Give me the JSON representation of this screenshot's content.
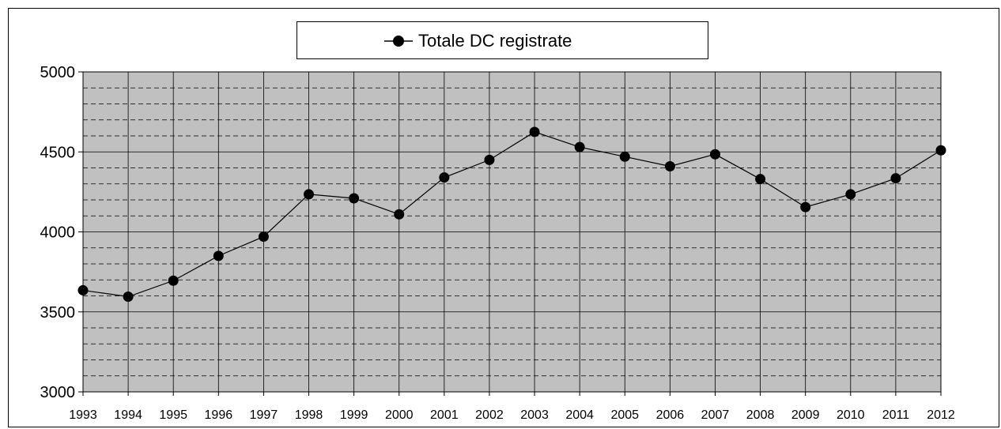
{
  "chart_data": {
    "type": "line",
    "categories": [
      "1993",
      "1994",
      "1995",
      "1996",
      "1997",
      "1998",
      "1999",
      "2000",
      "2001",
      "2002",
      "2003",
      "2004",
      "2005",
      "2006",
      "2007",
      "2008",
      "2009",
      "2010",
      "2011",
      "2012"
    ],
    "series": [
      {
        "name": "Totale DC registrate",
        "values": [
          3635,
          3595,
          3695,
          3850,
          3970,
          4235,
          4210,
          4110,
          4340,
          4450,
          4625,
          4530,
          4470,
          4410,
          4485,
          4330,
          4155,
          4235,
          4335,
          4510
        ]
      }
    ],
    "ylim": [
      3000,
      5000
    ],
    "y_ticks": [
      "3000",
      "3500",
      "4000",
      "4500",
      "5000"
    ],
    "y_minor_step": 100,
    "grid": true,
    "plot_background": "#c0c0c0",
    "line_color": "#000000",
    "marker_color": "#000000",
    "legend_position": "top-center",
    "title": "",
    "xlabel": "",
    "ylabel": ""
  }
}
